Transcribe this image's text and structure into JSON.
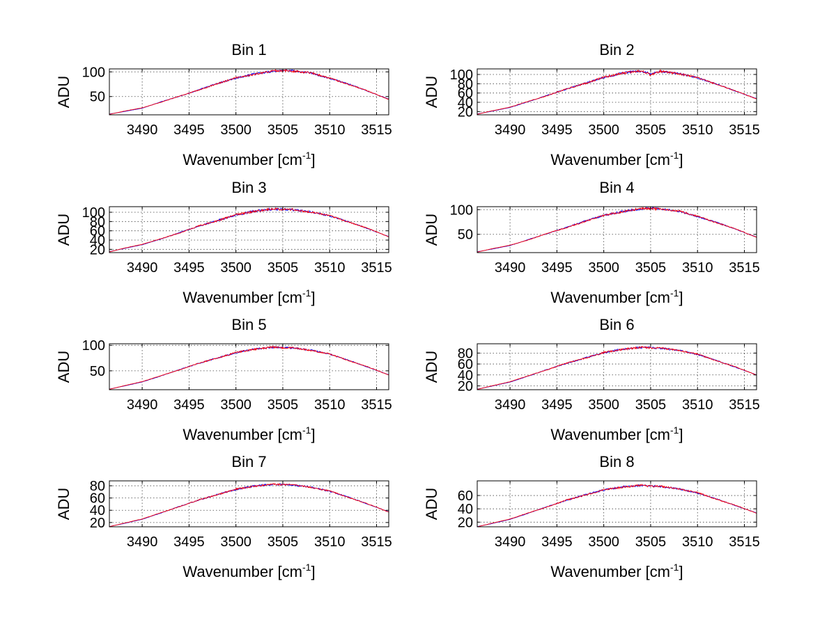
{
  "chart_data": [
    {
      "type": "line",
      "title": "Bin 1",
      "xlabel": "Wavenumber [cm",
      "xlabel_sup": "-1",
      "xlabel_close": "]",
      "ylabel": "ADU",
      "xlim": [
        3486.5,
        3516.3
      ],
      "ylim": [
        13,
        106
      ],
      "xticks": [
        3490,
        3495,
        3500,
        3505,
        3510,
        3515
      ],
      "yticks": [
        50,
        100
      ],
      "grid": true,
      "curve": {
        "peak": 103,
        "center": 3504.5,
        "width": 9.5,
        "noise": 2.2
      },
      "series": [
        {
          "color": "#0000ff",
          "x": [
            3486.5,
            3488,
            3490,
            3492,
            3494,
            3496,
            3498,
            3500,
            3502,
            3504,
            3505,
            3506,
            3508,
            3510,
            3512,
            3514,
            3516.3
          ],
          "y": [
            14.6,
            19.4,
            26.4,
            39.3,
            50.6,
            63.4,
            76.4,
            87.6,
            95.8,
            101.0,
            103.1,
            102.3,
            97.6,
            86.8,
            75.5,
            61.4,
            44.7
          ]
        },
        {
          "color": "#ff0000",
          "x": [
            3486.5,
            3488,
            3490,
            3492,
            3494,
            3496,
            3498,
            3500,
            3502,
            3504,
            3505,
            3506,
            3508,
            3510,
            3512,
            3514,
            3516.3
          ],
          "y": [
            14.0,
            20.1,
            27.2,
            38.4,
            51.2,
            62.8,
            75.6,
            88.3,
            94.9,
            102.4,
            102.6,
            101.4,
            98.3,
            87.4,
            74.7,
            61.9,
            44.1
          ]
        }
      ]
    },
    {
      "type": "line",
      "title": "Bin 2",
      "xlabel": "Wavenumber [cm",
      "xlabel_sup": "-1",
      "xlabel_close": "]",
      "ylabel": "ADU",
      "xlim": [
        3486.5,
        3516.3
      ],
      "ylim": [
        13,
        112
      ],
      "xticks": [
        3490,
        3495,
        3500,
        3505,
        3510,
        3515
      ],
      "yticks": [
        20,
        40,
        60,
        80,
        100
      ],
      "grid": true,
      "curve": {
        "peak": 108,
        "center": 3503.8,
        "width": 9.8,
        "noise": 2.5
      },
      "series": [
        {
          "color": "#0000ff",
          "x": [
            3486.5,
            3488,
            3490,
            3492,
            3494,
            3496,
            3498,
            3500,
            3502,
            3504,
            3505,
            3506,
            3508,
            3510,
            3512,
            3514,
            3516.3
          ],
          "y": [
            14.8,
            20.7,
            28.9,
            41.8,
            55.1,
            68.3,
            81.0,
            93.2,
            103.4,
            107.5,
            100.9,
            106.1,
            102.2,
            92.7,
            79.5,
            64.4,
            47.9
          ]
        },
        {
          "color": "#ff0000",
          "x": [
            3486.5,
            3488,
            3490,
            3492,
            3494,
            3496,
            3498,
            3500,
            3502,
            3504,
            3505,
            3506,
            3508,
            3510,
            3512,
            3514,
            3516.3
          ],
          "y": [
            14.2,
            21.3,
            29.6,
            42.5,
            54.3,
            69.0,
            80.4,
            94.1,
            102.6,
            108.3,
            98.8,
            106.9,
            101.5,
            93.6,
            78.8,
            65.1,
            47.2
          ]
        }
      ]
    },
    {
      "type": "line",
      "title": "Bin 3",
      "xlabel": "Wavenumber [cm",
      "xlabel_sup": "-1",
      "xlabel_close": "]",
      "ylabel": "ADU",
      "xlim": [
        3486.5,
        3516.3
      ],
      "ylim": [
        13,
        112
      ],
      "xticks": [
        3490,
        3495,
        3500,
        3505,
        3510,
        3515
      ],
      "yticks": [
        20,
        40,
        60,
        80,
        100
      ],
      "grid": true,
      "curve": {
        "peak": 107,
        "center": 3504.0,
        "width": 9.8,
        "noise": 2.5
      },
      "series": [
        {
          "color": "#0000ff",
          "x": [
            3486.5,
            3488,
            3490,
            3492,
            3494,
            3496,
            3498,
            3500,
            3502,
            3504,
            3505,
            3506,
            3508,
            3510,
            3512,
            3514,
            3516.3
          ],
          "y": [
            15.1,
            21.6,
            30.1,
            42.4,
            56.0,
            69.7,
            82.1,
            94.0,
            102.5,
            107.1,
            106.3,
            105.4,
            100.8,
            92.4,
            79.6,
            65.2,
            47.5
          ]
        },
        {
          "color": "#ff0000",
          "x": [
            3486.5,
            3488,
            3490,
            3492,
            3494,
            3496,
            3498,
            3500,
            3502,
            3504,
            3505,
            3506,
            3508,
            3510,
            3512,
            3514,
            3516.3
          ],
          "y": [
            14.5,
            22.2,
            30.8,
            43.1,
            55.2,
            70.4,
            81.4,
            94.8,
            101.7,
            108.0,
            105.6,
            106.1,
            100.1,
            93.1,
            78.9,
            65.9,
            46.8
          ]
        }
      ]
    },
    {
      "type": "line",
      "title": "Bin 4",
      "xlabel": "Wavenumber [cm",
      "xlabel_sup": "-1",
      "xlabel_close": "]",
      "ylabel": "ADU",
      "xlim": [
        3486.5,
        3516.3
      ],
      "ylim": [
        13,
        106
      ],
      "xticks": [
        3490,
        3495,
        3500,
        3505,
        3510,
        3515
      ],
      "yticks": [
        50,
        100
      ],
      "grid": true,
      "curve": {
        "peak": 103,
        "center": 3504.3,
        "width": 9.6,
        "noise": 2.2
      },
      "series": [
        {
          "color": "#0000ff",
          "x": [
            3486.5,
            3488,
            3490,
            3492,
            3494,
            3496,
            3498,
            3500,
            3502,
            3504,
            3505,
            3506,
            3508,
            3510,
            3512,
            3514,
            3516.3
          ],
          "y": [
            14.7,
            19.9,
            27.3,
            39.6,
            51.7,
            64.0,
            76.9,
            88.2,
            96.3,
            101.5,
            103.0,
            101.8,
            96.8,
            86.0,
            74.4,
            60.9,
            44.3
          ]
        },
        {
          "color": "#ff0000",
          "x": [
            3486.5,
            3488,
            3490,
            3492,
            3494,
            3496,
            3498,
            3500,
            3502,
            3504,
            3505,
            3506,
            3508,
            3510,
            3512,
            3514,
            3516.3
          ],
          "y": [
            14.1,
            20.6,
            28.0,
            38.8,
            52.3,
            63.3,
            76.2,
            88.9,
            95.5,
            102.7,
            102.4,
            101.0,
            97.5,
            86.7,
            73.7,
            61.5,
            43.8
          ]
        }
      ]
    },
    {
      "type": "line",
      "title": "Bin 5",
      "xlabel": "Wavenumber [cm",
      "xlabel_sup": "-1",
      "xlabel_close": "]",
      "ylabel": "ADU",
      "xlim": [
        3486.5,
        3516.3
      ],
      "ylim": [
        13,
        103
      ],
      "xticks": [
        3490,
        3495,
        3500,
        3505,
        3510,
        3515
      ],
      "yticks": [
        50,
        100
      ],
      "grid": true,
      "curve": {
        "peak": 96,
        "center": 3503.8,
        "width": 9.8,
        "noise": 1.8
      },
      "series": [
        {
          "color": "#0000ff",
          "x": [
            3486.5,
            3488,
            3490,
            3492,
            3494,
            3496,
            3498,
            3500,
            3502,
            3504,
            3505,
            3506,
            3508,
            3510,
            3512,
            3514,
            3516.3
          ],
          "y": [
            14.2,
            20.0,
            28.2,
            39.9,
            52.6,
            64.2,
            75.3,
            85.4,
            92.6,
            96.1,
            95.7,
            94.8,
            90.5,
            82.6,
            70.8,
            57.6,
            42.3
          ]
        },
        {
          "color": "#ff0000",
          "x": [
            3486.5,
            3488,
            3490,
            3492,
            3494,
            3496,
            3498,
            3500,
            3502,
            3504,
            3505,
            3506,
            3508,
            3510,
            3512,
            3514,
            3516.3
          ],
          "y": [
            13.8,
            20.5,
            28.8,
            40.5,
            52.0,
            64.8,
            74.7,
            86.0,
            92.0,
            96.7,
            95.1,
            95.4,
            89.9,
            83.2,
            70.2,
            58.2,
            41.8
          ]
        }
      ]
    },
    {
      "type": "line",
      "title": "Bin 6",
      "xlabel": "Wavenumber [cm",
      "xlabel_sup": "-1",
      "xlabel_close": "]",
      "ylabel": "ADU",
      "xlim": [
        3486.5,
        3516.3
      ],
      "ylim": [
        13,
        97
      ],
      "xticks": [
        3490,
        3495,
        3500,
        3505,
        3510,
        3515
      ],
      "yticks": [
        20,
        40,
        60,
        80
      ],
      "grid": true,
      "curve": {
        "peak": 90,
        "center": 3503.8,
        "width": 9.8,
        "noise": 1.8
      },
      "series": [
        {
          "color": "#0000ff",
          "x": [
            3486.5,
            3488,
            3490,
            3492,
            3494,
            3496,
            3498,
            3500,
            3502,
            3504,
            3505,
            3506,
            3508,
            3510,
            3512,
            3514,
            3516.3
          ],
          "y": [
            14.0,
            19.3,
            27.0,
            38.2,
            50.1,
            61.0,
            71.1,
            80.5,
            87.1,
            90.2,
            89.8,
            88.9,
            85.0,
            77.5,
            66.6,
            54.4,
            40.3
          ]
        },
        {
          "color": "#ff0000",
          "x": [
            3486.5,
            3488,
            3490,
            3492,
            3494,
            3496,
            3498,
            3500,
            3502,
            3504,
            3505,
            3506,
            3508,
            3510,
            3512,
            3514,
            3516.3
          ],
          "y": [
            13.6,
            19.8,
            27.6,
            38.8,
            49.6,
            61.6,
            70.6,
            81.1,
            86.5,
            90.8,
            89.2,
            89.5,
            84.4,
            78.1,
            66.0,
            55.0,
            39.8
          ]
        }
      ]
    },
    {
      "type": "line",
      "title": "Bin 7",
      "xlabel": "Wavenumber [cm",
      "xlabel_sup": "-1",
      "xlabel_close": "]",
      "ylabel": "ADU",
      "xlim": [
        3486.5,
        3516.3
      ],
      "ylim": [
        13,
        88
      ],
      "xticks": [
        3490,
        3495,
        3500,
        3505,
        3510,
        3515
      ],
      "yticks": [
        20,
        40,
        60,
        80
      ],
      "grid": true,
      "curve": {
        "peak": 82,
        "center": 3504.0,
        "width": 9.8,
        "noise": 1.5
      },
      "series": [
        {
          "color": "#0000ff",
          "x": [
            3486.5,
            3488,
            3490,
            3492,
            3494,
            3496,
            3498,
            3500,
            3502,
            3504,
            3505,
            3506,
            3508,
            3510,
            3512,
            3514,
            3516.3
          ],
          "y": [
            13.5,
            18.2,
            25.3,
            35.5,
            46.4,
            56.4,
            65.6,
            74.0,
            79.6,
            82.3,
            82.0,
            81.3,
            77.8,
            71.1,
            61.4,
            50.4,
            37.5
          ]
        },
        {
          "color": "#ff0000",
          "x": [
            3486.5,
            3488,
            3490,
            3492,
            3494,
            3496,
            3498,
            3500,
            3502,
            3504,
            3505,
            3506,
            3508,
            3510,
            3512,
            3514,
            3516.3
          ],
          "y": [
            13.2,
            18.7,
            25.8,
            36.0,
            45.9,
            56.9,
            65.1,
            74.5,
            79.1,
            82.8,
            81.5,
            81.8,
            77.3,
            71.6,
            60.9,
            50.9,
            37.1
          ]
        }
      ]
    },
    {
      "type": "line",
      "title": "Bin 8",
      "xlabel": "Wavenumber [cm",
      "xlabel_sup": "-1",
      "xlabel_close": "]",
      "ylabel": "ADU",
      "xlim": [
        3486.5,
        3516.3
      ],
      "ylim": [
        13,
        82
      ],
      "xticks": [
        3490,
        3495,
        3500,
        3505,
        3510,
        3515
      ],
      "yticks": [
        20,
        40,
        60
      ],
      "grid": true,
      "curve": {
        "peak": 75,
        "center": 3503.6,
        "width": 9.8,
        "noise": 1.5
      },
      "series": [
        {
          "color": "#0000ff",
          "x": [
            3486.5,
            3488,
            3490,
            3492,
            3494,
            3496,
            3498,
            3500,
            3502,
            3504,
            3505,
            3506,
            3508,
            3510,
            3512,
            3514,
            3516.3
          ],
          "y": [
            13.3,
            17.6,
            24.2,
            33.6,
            43.5,
            52.6,
            61.0,
            68.3,
            73.0,
            75.0,
            74.5,
            73.6,
            70.0,
            63.8,
            54.9,
            45.1,
            33.8
          ]
        },
        {
          "color": "#ff0000",
          "x": [
            3486.5,
            3488,
            3490,
            3492,
            3494,
            3496,
            3498,
            3500,
            3502,
            3504,
            3505,
            3506,
            3508,
            3510,
            3512,
            3514,
            3516.3
          ],
          "y": [
            13.0,
            18.1,
            24.7,
            34.1,
            43.0,
            53.1,
            60.5,
            68.8,
            72.5,
            75.5,
            74.0,
            74.1,
            69.5,
            64.3,
            54.4,
            45.6,
            33.4
          ]
        }
      ]
    }
  ]
}
